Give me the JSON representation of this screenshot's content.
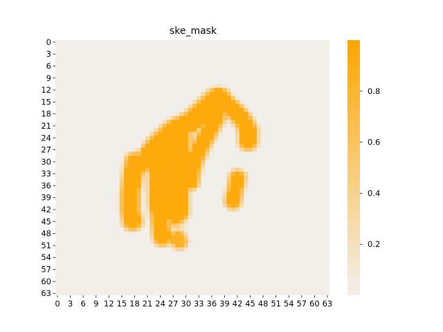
{
  "chart_data": {
    "type": "heatmap",
    "title": "ske_mask",
    "xlabel": "",
    "ylabel": "",
    "rows": 64,
    "cols": 64,
    "x_tick_labels": [
      "0",
      "3",
      "6",
      "9",
      "12",
      "15",
      "18",
      "21",
      "24",
      "27",
      "30",
      "33",
      "36",
      "39",
      "42",
      "45",
      "48",
      "51",
      "54",
      "57",
      "60",
      "63"
    ],
    "y_tick_labels": [
      "0",
      "3",
      "6",
      "9",
      "12",
      "15",
      "18",
      "21",
      "24",
      "27",
      "30",
      "33",
      "36",
      "39",
      "42",
      "45",
      "48",
      "51",
      "54",
      "57",
      "60",
      "63"
    ],
    "colorbar": {
      "min": 0.0,
      "max": 1.0,
      "ticks": [
        0.2,
        0.4,
        0.6,
        0.8
      ],
      "tick_labels": [
        "0.2",
        "0.4",
        "0.6",
        "0.8"
      ],
      "color_low": "#f2efeb",
      "color_high": "#ffa500"
    },
    "strokes": [
      {
        "points": [
          [
            18,
            30
          ],
          [
            17.5,
            34
          ],
          [
            17,
            38
          ],
          [
            17,
            42
          ],
          [
            17.5,
            45
          ]
        ],
        "width": 1.8,
        "value": 0.95
      },
      {
        "points": [
          [
            19,
            31
          ],
          [
            21,
            29
          ],
          [
            23,
            26
          ],
          [
            25,
            24
          ],
          [
            27,
            22
          ],
          [
            29,
            21
          ],
          [
            31,
            20
          ],
          [
            33,
            18
          ],
          [
            35,
            16
          ],
          [
            37,
            14
          ],
          [
            38,
            14
          ]
        ],
        "width": 2.0,
        "value": 0.95
      },
      {
        "points": [
          [
            24,
            25
          ],
          [
            23.5,
            30
          ],
          [
            23.5,
            35
          ],
          [
            23.5,
            40
          ],
          [
            24,
            45
          ],
          [
            24.5,
            49
          ]
        ],
        "width": 1.7,
        "value": 0.95
      },
      {
        "points": [
          [
            24.5,
            26
          ],
          [
            26,
            24
          ],
          [
            28,
            22
          ]
        ],
        "width": 1.8,
        "value": 0.95
      },
      {
        "points": [
          [
            27,
            23
          ],
          [
            27,
            28
          ],
          [
            26.5,
            33
          ],
          [
            27,
            37
          ],
          [
            27,
            41
          ],
          [
            27.5,
            44
          ]
        ],
        "width": 1.6,
        "value": 0.95
      },
      {
        "points": [
          [
            29,
            22
          ],
          [
            29,
            26
          ],
          [
            28.5,
            31
          ],
          [
            28.5,
            36
          ],
          [
            28.5,
            40
          ],
          [
            28.5,
            43
          ]
        ],
        "width": 1.6,
        "value": 0.95
      },
      {
        "points": [
          [
            31,
            21
          ],
          [
            32,
            20
          ],
          [
            35,
            19
          ]
        ],
        "width": 1.5,
        "value": 0.95
      },
      {
        "points": [
          [
            38,
            15
          ],
          [
            37,
            19
          ],
          [
            35,
            23
          ],
          [
            33,
            27
          ],
          [
            31.5,
            31
          ],
          [
            31,
            35
          ]
        ],
        "width": 1.6,
        "value": 0.95
      },
      {
        "points": [
          [
            38,
            14
          ],
          [
            40,
            16
          ],
          [
            42,
            18
          ],
          [
            43.5,
            20
          ],
          [
            44.5,
            22
          ],
          [
            44.5,
            25
          ]
        ],
        "width": 1.7,
        "value": 0.95
      },
      {
        "points": [
          [
            42,
            34
          ],
          [
            41.5,
            37
          ],
          [
            41,
            40
          ]
        ],
        "width": 1.4,
        "value": 0.95
      },
      {
        "points": [
          [
            28,
            49
          ],
          [
            28.5,
            50
          ]
        ],
        "width": 1.4,
        "value": 0.85
      },
      {
        "points": [
          [
            28,
            45
          ],
          [
            28,
            47
          ]
        ],
        "width": 1.2,
        "value": 0.25
      }
    ]
  }
}
